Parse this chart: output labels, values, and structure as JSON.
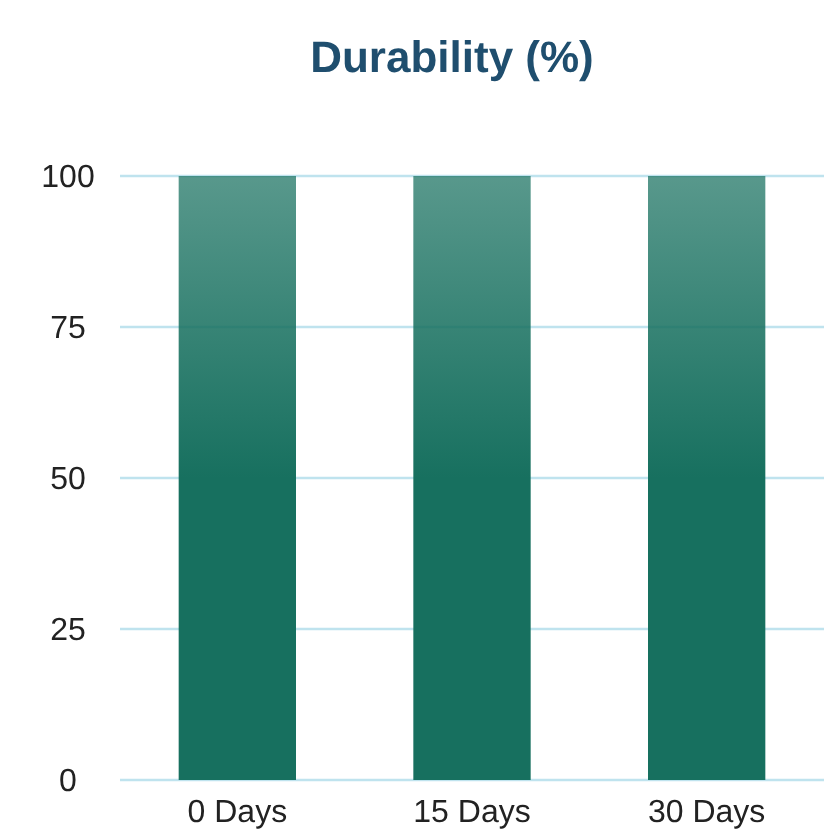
{
  "chart_data": {
    "type": "bar",
    "title": "Durability (%)",
    "categories": [
      "0 Days",
      "15 Days",
      "30 Days"
    ],
    "values": [
      100,
      100,
      100
    ],
    "color": "#17705f",
    "ylim": [
      0,
      100
    ],
    "yticks": [
      0,
      25,
      50,
      75,
      100
    ],
    "grid": "y"
  }
}
